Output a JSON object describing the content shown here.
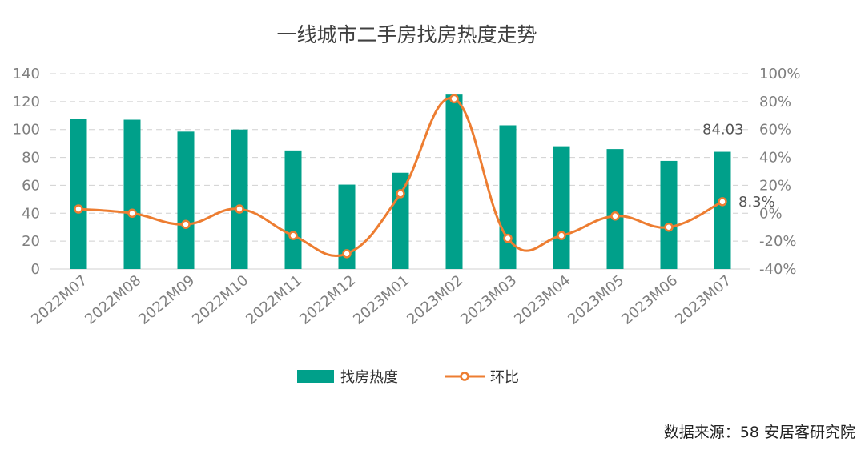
{
  "chart_data": {
    "type": "bar+line",
    "title": "一线城市二手房找房热度走势",
    "categories": [
      "2022M07",
      "2022M08",
      "2022M09",
      "2022M10",
      "2022M11",
      "2022M12",
      "2023M01",
      "2023M02",
      "2023M03",
      "2023M04",
      "2023M05",
      "2023M06",
      "2023M07"
    ],
    "series": [
      {
        "name": "找房热度",
        "type": "bar",
        "axis": "left",
        "color": "#00a08a",
        "values": [
          107.5,
          107,
          98.5,
          100,
          85,
          60.5,
          69,
          125,
          103,
          88,
          86,
          77.5,
          84.03
        ]
      },
      {
        "name": "环比",
        "type": "line",
        "axis": "right",
        "color": "#ed7d31",
        "unit": "%",
        "values": [
          3,
          0,
          -8,
          3,
          -16,
          -29,
          14,
          82,
          -18,
          -16,
          -2,
          -10,
          8.3
        ]
      }
    ],
    "left_axis": {
      "min": 0,
      "max": 140,
      "ticks": [
        "0",
        "20",
        "40",
        "60",
        "80",
        "100",
        "120",
        "140"
      ]
    },
    "right_axis": {
      "min": -40,
      "max": 100,
      "ticks": [
        "-40%",
        "-20%",
        "0%",
        "20%",
        "40%",
        "60%",
        "80%",
        "100%"
      ]
    },
    "data_labels": [
      {
        "series": "找房热度",
        "category": "2023M07",
        "text": "84.03"
      },
      {
        "series": "环比",
        "category": "2023M07",
        "text": "8.3%"
      }
    ],
    "grid": true,
    "legend": "bottom-center"
  },
  "source": "数据来源：58 安居客研究院"
}
